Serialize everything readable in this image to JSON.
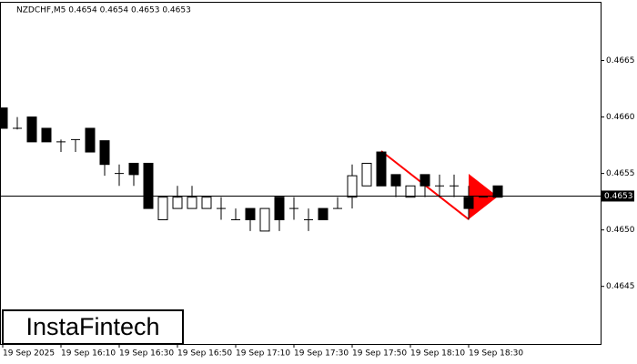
{
  "chart_data": {
    "type": "candlestick",
    "title": "NZDCHF,M5  0.4654 0.4654 0.4653 0.4653",
    "brand": "InstaFintech",
    "categories": [
      "19 Sep 2025",
      null,
      null,
      null,
      "19 Sep 16:10",
      null,
      null,
      null,
      "19 Sep 16:30",
      null,
      null,
      null,
      "19 Sep 16:50",
      null,
      null,
      null,
      "19 Sep 17:10",
      null,
      null,
      null,
      "19 Sep 17:30",
      null,
      null,
      null,
      "19 Sep 17:50",
      null,
      null,
      null,
      "19 Sep 18:10",
      null,
      null,
      null,
      "19 Sep 18:30",
      null,
      null
    ],
    "open": [
      0.46608,
      0.4659,
      0.466,
      0.4659,
      0.46578,
      0.4658,
      0.4659,
      0.46579,
      0.4655,
      0.46559,
      0.46559,
      0.46509,
      0.46519,
      0.46519,
      0.46519,
      0.46519,
      0.46509,
      0.46519,
      0.46499,
      0.46529,
      0.46519,
      0.46509,
      0.46519,
      0.46519,
      0.46529,
      0.46539,
      0.46569,
      0.46549,
      0.46529,
      0.46549,
      0.46539,
      0.46539,
      0.46529,
      0.46529,
      0.46539
    ],
    "high": [
      0.46608,
      0.466,
      0.466,
      0.4659,
      0.4658,
      0.4658,
      0.4659,
      0.46579,
      0.46558,
      0.46559,
      0.46559,
      0.46529,
      0.46539,
      0.46539,
      0.46529,
      0.46529,
      0.46519,
      0.46519,
      0.46519,
      0.46529,
      0.46529,
      0.46519,
      0.46519,
      0.46529,
      0.46558,
      0.46559,
      0.46569,
      0.46549,
      0.46539,
      0.46549,
      0.46549,
      0.46549,
      0.46539,
      0.46529,
      0.46539
    ],
    "low": [
      0.4659,
      0.46589,
      0.46578,
      0.46578,
      0.46569,
      0.46569,
      0.46569,
      0.46548,
      0.46539,
      0.46539,
      0.46519,
      0.46509,
      0.46519,
      0.46519,
      0.46519,
      0.46509,
      0.46509,
      0.46499,
      0.46499,
      0.46499,
      0.46509,
      0.46499,
      0.46509,
      0.46519,
      0.46519,
      0.46539,
      0.46539,
      0.46529,
      0.46529,
      0.46529,
      0.46529,
      0.46529,
      0.46509,
      0.46529,
      0.46529
    ],
    "close": [
      0.4659,
      0.4659,
      0.46578,
      0.46578,
      0.46578,
      0.4658,
      0.46569,
      0.46558,
      0.4655,
      0.46549,
      0.46519,
      0.46529,
      0.46529,
      0.46529,
      0.46529,
      0.46519,
      0.46509,
      0.46509,
      0.46519,
      0.46509,
      0.46519,
      0.46509,
      0.46509,
      0.46519,
      0.46548,
      0.46559,
      0.46539,
      0.46539,
      0.46539,
      0.46539,
      0.46539,
      0.46539,
      0.46519,
      0.46529,
      0.46529
    ],
    "current_price": 0.4653,
    "ylim": [
      0.46399,
      0.46702
    ],
    "yticks": [
      0.4645,
      {
        "value": 0.465,
        "label": "0.4650"
      },
      0.4655,
      {
        "value": 0.466,
        "label": "0.4660"
      },
      0.4665
    ],
    "up_color": "#ffffff",
    "down_color": "#000000",
    "pattern_color": "#ff0000"
  }
}
